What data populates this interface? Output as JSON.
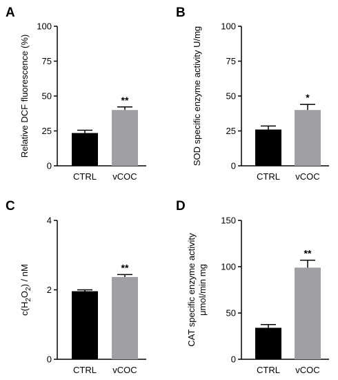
{
  "chart_data": [
    {
      "panel": "A",
      "type": "bar",
      "categories": [
        "CTRL",
        "vCOC"
      ],
      "values": [
        23.5,
        40
      ],
      "errors": [
        2,
        2.2
      ],
      "significance": [
        "",
        "**"
      ],
      "colors": [
        "#000000",
        "#a0a0a4"
      ],
      "ylabel": "Relative DCF fluorescence (%)",
      "ylim": [
        0,
        100
      ],
      "yticks": [
        0,
        25,
        50,
        75,
        100
      ]
    },
    {
      "panel": "B",
      "type": "bar",
      "categories": [
        "CTRL",
        "vCOC"
      ],
      "values": [
        26,
        40
      ],
      "errors": [
        2.5,
        4
      ],
      "significance": [
        "",
        "*"
      ],
      "colors": [
        "#000000",
        "#a0a0a4"
      ],
      "ylabel": "SOD specific enzyme activity U/mg",
      "ylim": [
        0,
        100
      ],
      "yticks": [
        0,
        25,
        50,
        75,
        100
      ]
    },
    {
      "panel": "C",
      "type": "bar",
      "categories": [
        "CTRL",
        "vCOC"
      ],
      "values": [
        1.96,
        2.37
      ],
      "errors": [
        0.04,
        0.07
      ],
      "significance": [
        "",
        "**"
      ],
      "colors": [
        "#000000",
        "#a0a0a4"
      ],
      "ylabel": "c(H2O2) / nM",
      "ylim": [
        0,
        4
      ],
      "yticks": [
        0,
        2,
        4
      ]
    },
    {
      "panel": "D",
      "type": "bar",
      "categories": [
        "CTRL",
        "vCOC"
      ],
      "values": [
        34,
        99
      ],
      "errors": [
        3.5,
        8
      ],
      "significance": [
        "",
        "**"
      ],
      "colors": [
        "#000000",
        "#a0a0a4"
      ],
      "ylabel": "CAT specific enzyme activity μmol/min mg",
      "ylim": [
        0,
        150
      ],
      "yticks": [
        0,
        50,
        100,
        150
      ]
    }
  ]
}
